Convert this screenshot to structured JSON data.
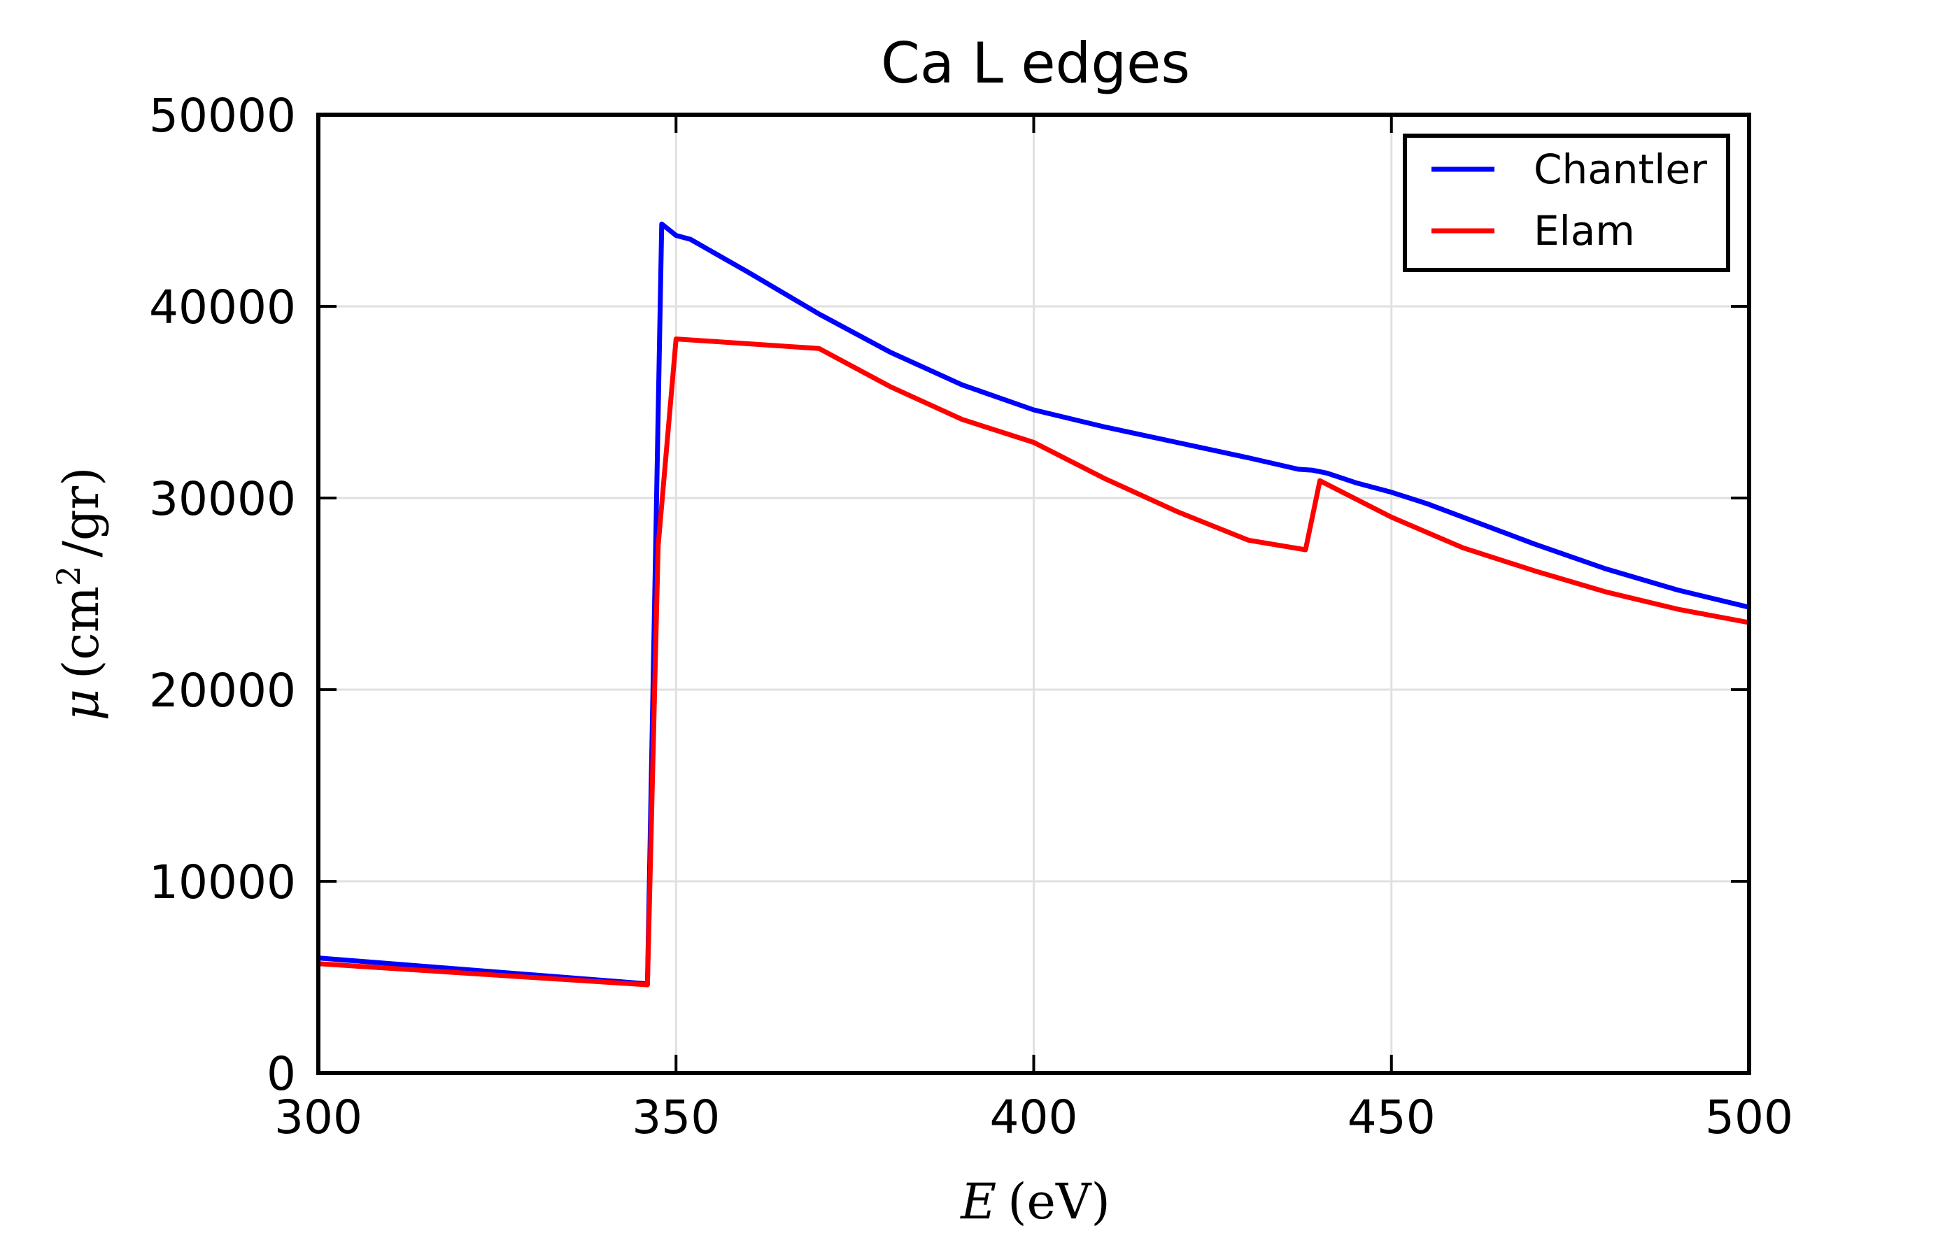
{
  "chart_data": {
    "type": "line",
    "title": "Ca L edges",
    "xlabel": {
      "symbol": "E",
      "unit": "(eV)"
    },
    "ylabel": {
      "symbol": "μ",
      "open": "(cm",
      "sup": "2",
      "rest": "/gr)"
    },
    "xlim": [
      300,
      500
    ],
    "ylim": [
      0,
      50000
    ],
    "xticks": [
      300,
      350,
      400,
      450,
      500
    ],
    "xtick_labels": [
      "300",
      "350",
      "400",
      "450",
      "500"
    ],
    "yticks": [
      0,
      10000,
      20000,
      30000,
      40000,
      50000
    ],
    "ytick_labels": [
      "0",
      "10000",
      "20000",
      "30000",
      "40000",
      "50000"
    ],
    "grid": true,
    "legend_position": "top-right",
    "series": [
      {
        "name": "Chantler",
        "color": "#0000ff",
        "x": [
          300,
          346,
          348,
          350,
          352,
          360,
          370,
          380,
          390,
          400,
          410,
          420,
          430,
          437,
          439,
          441,
          445,
          450,
          455,
          460,
          470,
          480,
          490,
          500
        ],
        "y": [
          6000,
          4650,
          44300,
          43700,
          43500,
          41800,
          39600,
          37600,
          35900,
          34600,
          33700,
          32900,
          32100,
          31500,
          31450,
          31300,
          30800,
          30300,
          29700,
          29000,
          27600,
          26300,
          25200,
          24300
        ]
      },
      {
        "name": "Elam",
        "color": "#ff0000",
        "x": [
          300,
          346,
          347.5,
          350,
          370,
          380,
          390,
          400,
          410,
          420,
          430,
          438,
          440,
          450,
          460,
          470,
          480,
          490,
          500
        ],
        "y": [
          5700,
          4600,
          27500,
          38300,
          37800,
          35800,
          34100,
          32900,
          31000,
          29300,
          27800,
          27300,
          30900,
          29000,
          27400,
          26200,
          25100,
          24200,
          23500
        ]
      }
    ]
  }
}
